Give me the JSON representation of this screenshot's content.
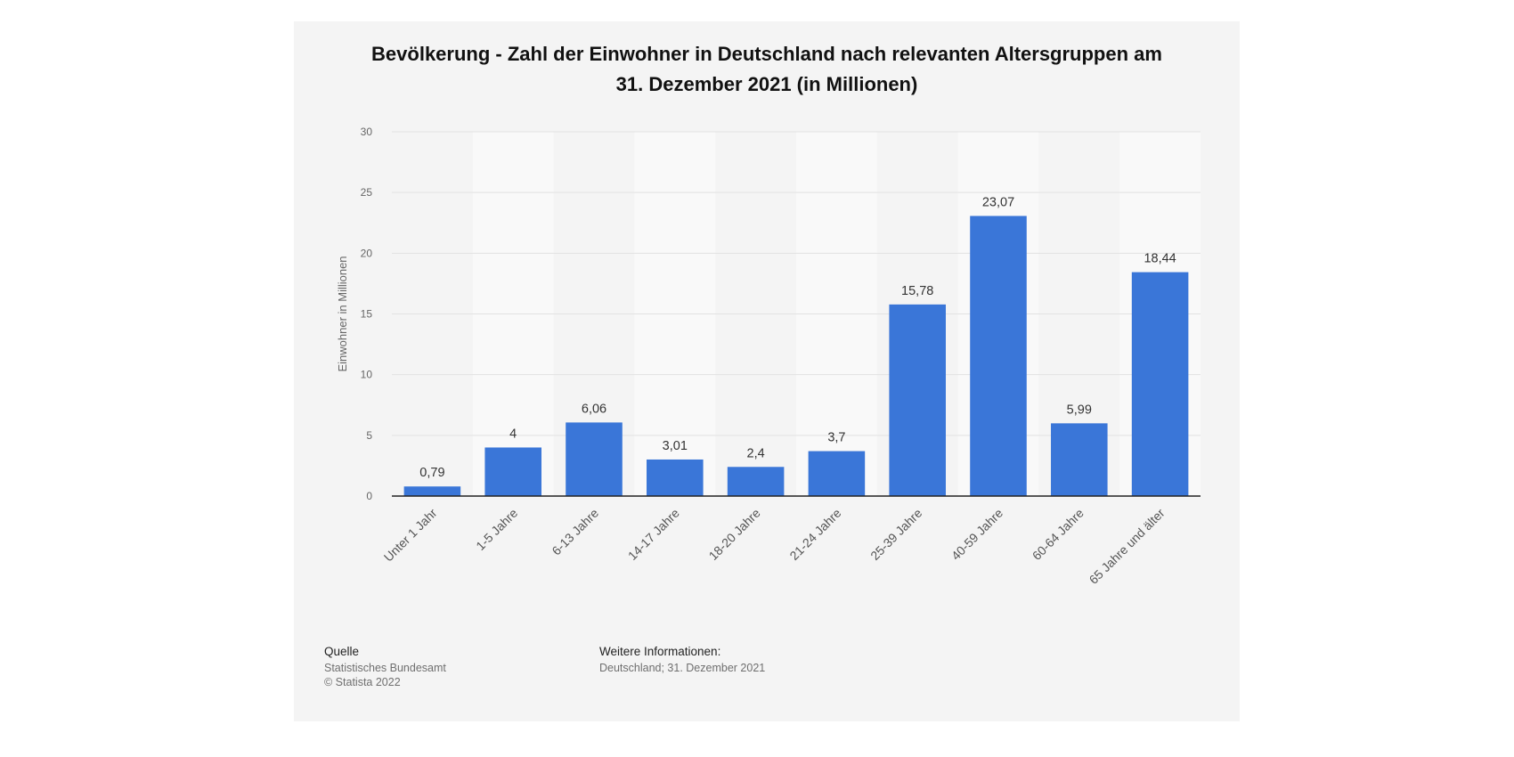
{
  "chart_data": {
    "type": "bar",
    "title_lines": [
      "Bevölkerung - Zahl der Einwohner in Deutschland nach relevanten Altersgruppen am",
      "31. Dezember 2021 (in Millionen)"
    ],
    "ylabel": "Einwohner in Millionen",
    "xlabel": "",
    "ylim": [
      0,
      30
    ],
    "yticks": [
      "0",
      "5",
      "10",
      "15",
      "20",
      "25",
      "30"
    ],
    "categories": [
      "Unter 1 Jahr",
      "1-5 Jahre",
      "6-13 Jahre",
      "14-17 Jahre",
      "18-20 Jahre",
      "21-24 Jahre",
      "25-39 Jahre",
      "40-59 Jahre",
      "60-64 Jahre",
      "65 Jahre und älter"
    ],
    "values": [
      0.79,
      4,
      6.06,
      3.01,
      2.4,
      3.7,
      15.78,
      23.07,
      5.99,
      18.44
    ],
    "value_labels": [
      "0,79",
      "4",
      "6,06",
      "3,01",
      "2,4",
      "3,7",
      "15,78",
      "23,07",
      "5,99",
      "18,44"
    ],
    "bar_color": "#3a76d8",
    "grid": true
  },
  "footer": {
    "source_heading": "Quelle",
    "source_lines": [
      "Statistisches Bundesamt",
      "© Statista 2022"
    ],
    "info_heading": "Weitere Informationen:",
    "info_lines": [
      "Deutschland; 31. Dezember 2021"
    ]
  }
}
